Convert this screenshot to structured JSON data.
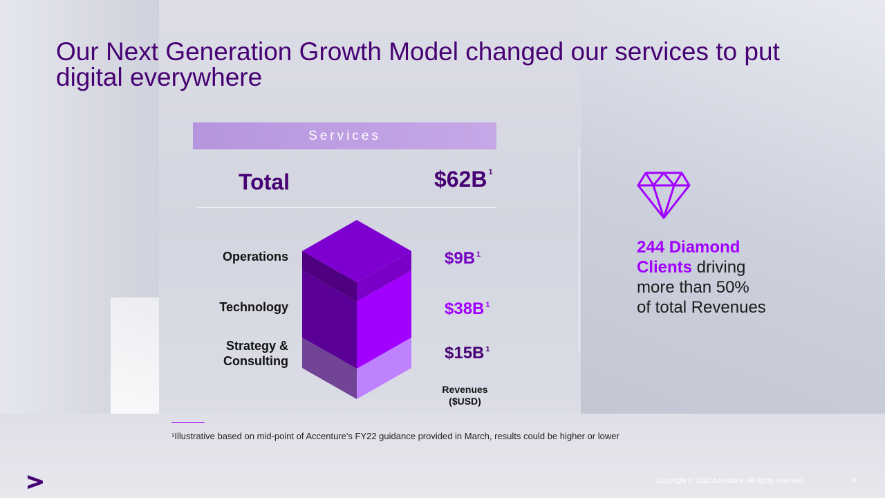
{
  "slide": {
    "title": "Our Next Generation Growth Model changed our services to put digital everywhere",
    "page_number": "6",
    "copyright": "Copyright © 2022 Accenture. All rights reserved."
  },
  "services": {
    "header": "Services",
    "total_label": "Total",
    "total_value": "$62B",
    "total_footnote_mark": "1",
    "segments": [
      {
        "label": "Operations",
        "value": "$9B",
        "mark": "1",
        "color": "#7500c0"
      },
      {
        "label": "Technology",
        "value": "$38B",
        "mark": "1",
        "color": "#a100ff"
      },
      {
        "label_line1": "Strategy &",
        "label_line2": "Consulting",
        "value": "$15B",
        "mark": "1",
        "color": "#460073"
      }
    ],
    "revenues_caption_line1": "Revenues",
    "revenues_caption_line2": "($USD)"
  },
  "diamond": {
    "icon": "diamond-icon",
    "highlight_line1": "244 Diamond",
    "highlight_line2": "Clients",
    "text_line2_rest": " driving",
    "text_line3": "more than 50%",
    "text_line4": "of total Revenues"
  },
  "footnote": {
    "text": "¹Illustrative based on mid-point of Accenture's FY22 guidance provided in March, results could be higher or lower"
  },
  "colors": {
    "brand_purple": "#a100ff",
    "dark_purple": "#460073",
    "mid_purple": "#7500c0"
  }
}
